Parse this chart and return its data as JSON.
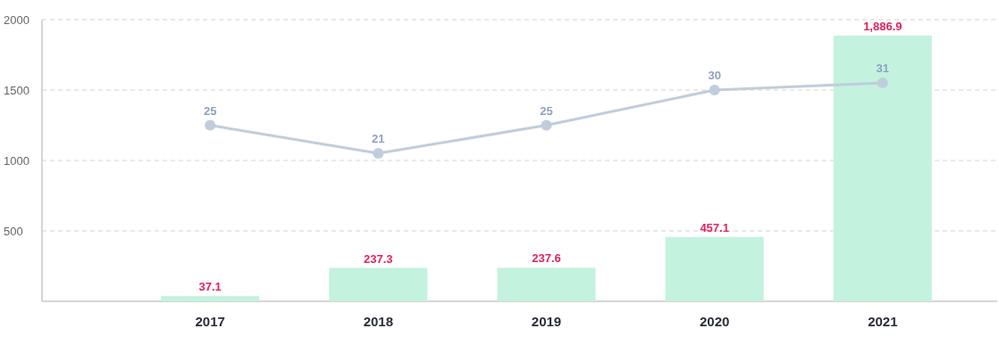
{
  "chart_data": {
    "type": "bar",
    "categories": [
      "2017",
      "2018",
      "2019",
      "2020",
      "2021"
    ],
    "series": [
      {
        "color": "#c3f2de",
        "values": [
          37.1,
          237.3,
          237.6,
          457.1,
          1886.9
        ],
        "value_labels": [
          "37.1",
          "237.3",
          "237.6",
          "457.1",
          "1,886.9"
        ]
      },
      {
        "type": "line",
        "axis": "y2",
        "color": "#c0cddc",
        "values": [
          25,
          21,
          25,
          30,
          31
        ],
        "value_labels": [
          "25",
          "21",
          "25",
          "30",
          "31"
        ]
      }
    ],
    "ylim": [
      0,
      2000
    ],
    "yticks": [
      500,
      1000,
      1500,
      2000
    ],
    "y2lim": [
      0,
      40
    ],
    "grid": "y",
    "marker": "circle",
    "line_style": "solid"
  }
}
